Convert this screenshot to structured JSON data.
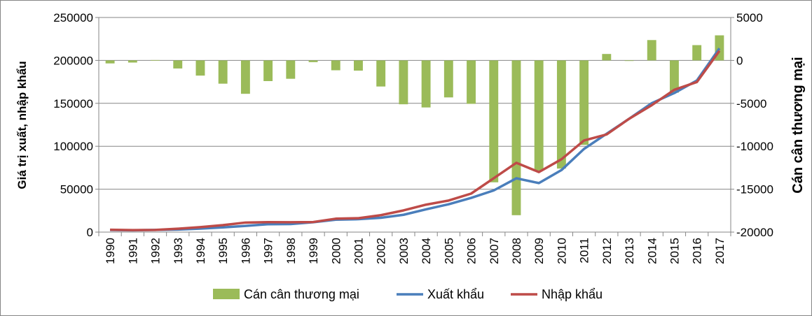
{
  "chart_data": {
    "type": "bar+line",
    "categories": [
      "1990",
      "1991",
      "1992",
      "1993",
      "1994",
      "1995",
      "1996",
      "1997",
      "1998",
      "1999",
      "2000",
      "2001",
      "2002",
      "2003",
      "2004",
      "2005",
      "2006",
      "2007",
      "2008",
      "2009",
      "2010",
      "2011",
      "2012",
      "2013",
      "2014",
      "2015",
      "2016",
      "2017"
    ],
    "series": [
      {
        "name": "Cán cân thương mại",
        "type": "bar",
        "axis": "right",
        "color": "#9BBB59",
        "values": [
          -350,
          -250,
          40,
          -940,
          -1770,
          -2710,
          -3890,
          -2410,
          -2140,
          -200,
          -1150,
          -1190,
          -3040,
          -5110,
          -5480,
          -4310,
          -5060,
          -14200,
          -18030,
          -12850,
          -12600,
          -9840,
          750,
          0,
          2370,
          -3760,
          1780,
          2920
        ]
      },
      {
        "name": "Xuất khẩu",
        "type": "line",
        "axis": "left",
        "color": "#4A7EBB",
        "values": [
          2400,
          2090,
          2580,
          2985,
          4054,
          5449,
          7256,
          9185,
          9361,
          11541,
          14483,
          15029,
          16706,
          20149,
          26485,
          32447,
          39826,
          48561,
          62685,
          57096,
          72237,
          96906,
          114529,
          132033,
          150217,
          162017,
          176581,
          214019
        ]
      },
      {
        "name": "Nhập khẩu",
        "type": "line",
        "axis": "left",
        "color": "#BE4B48",
        "values": [
          2750,
          2340,
          2540,
          3924,
          5826,
          8155,
          11144,
          11592,
          11500,
          11742,
          15637,
          16218,
          19746,
          25256,
          31969,
          36761,
          44891,
          62764,
          80714,
          69949,
          84839,
          106750,
          113780,
          132033,
          147849,
          165776,
          174804,
          211100
        ]
      }
    ],
    "ylabel": "Giá trị xuất, nhập khẩu",
    "ylabel_right": "Cán cân thương mại",
    "xlabel": "",
    "ylim": [
      0,
      250000
    ],
    "ylim_right": [
      -20000,
      5000
    ],
    "yticks": [
      "0",
      "50000",
      "100000",
      "150000",
      "200000",
      "250000"
    ],
    "yticks_right": [
      "-20000",
      "-15000",
      "-10000",
      "-5000",
      "0",
      "5000"
    ],
    "grid": true,
    "legend": "bottom"
  }
}
